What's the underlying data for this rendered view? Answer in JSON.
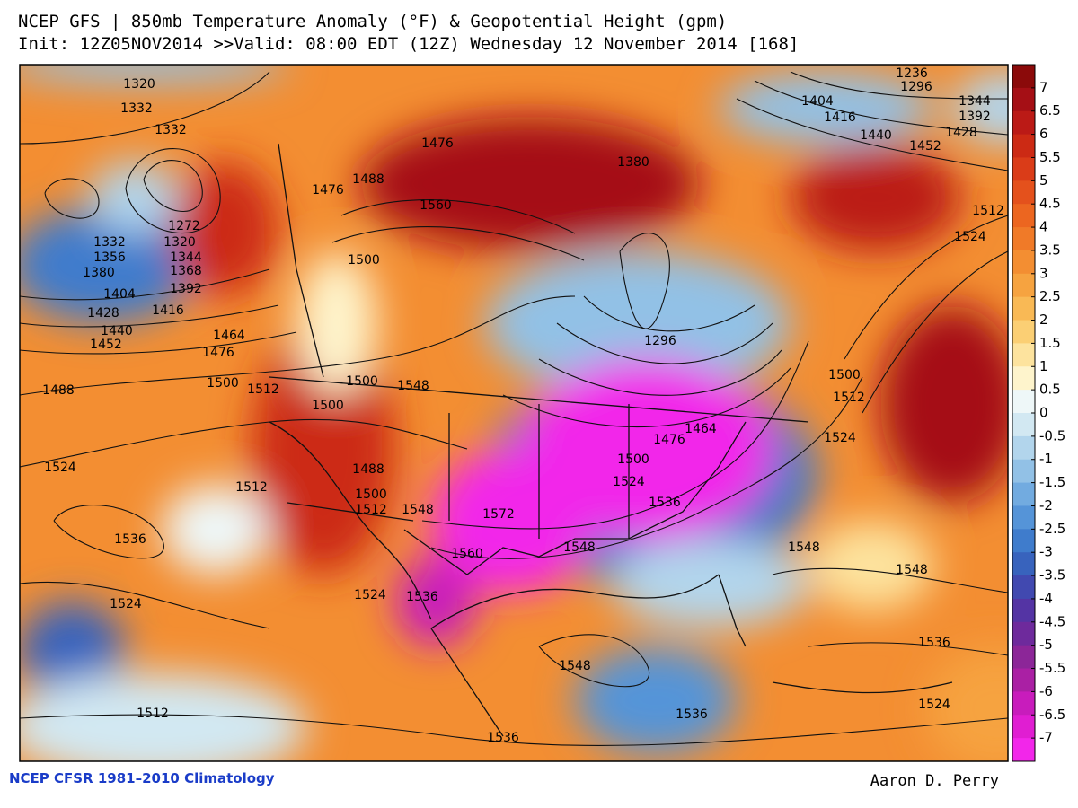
{
  "header": {
    "title": "NCEP GFS | 850mb Temperature Anomaly (°F) & Geopotential Height (gpm)",
    "subtitle": "Init: 12Z05NOV2014 >>Valid: 08:00 EDT (12Z) Wednesday 12 November 2014 [168]"
  },
  "colorbar": {
    "ticks": [
      7,
      6.5,
      6,
      5.5,
      5,
      4.5,
      4,
      3.5,
      3,
      2.5,
      2,
      1.5,
      1,
      0.5,
      0,
      -0.5,
      -1,
      -1.5,
      -2,
      -2.5,
      -3,
      -3.5,
      -4,
      -4.5,
      -5,
      -5.5,
      -6,
      -6.5,
      -7
    ],
    "colors": [
      "#8b0a0a",
      "#a50f15",
      "#bb1a16",
      "#cc2a14",
      "#da3c18",
      "#e4511c",
      "#ec6620",
      "#f07a28",
      "#f38e32",
      "#f6a340",
      "#f9b955",
      "#fbcf74",
      "#fde39e",
      "#fef4cc",
      "#eef7f8",
      "#d2e8f2",
      "#b2d5ec",
      "#92c1e6",
      "#72abe0",
      "#5594d8",
      "#3f7ccc",
      "#3863bd",
      "#4149b0",
      "#5434a4",
      "#6e2a9c",
      "#8c2698",
      "#aa20a4",
      "#c81cbc",
      "#e01ed2",
      "#f226ea"
    ]
  },
  "contour_labels": [
    1320,
    1332,
    1332,
    1272,
    1332,
    1320,
    1356,
    1344,
    1380,
    1368,
    1404,
    1392,
    1428,
    1416,
    1440,
    1452,
    1464,
    1476,
    1488,
    1500,
    1512,
    1500,
    1500,
    1548,
    1524,
    1512,
    1488,
    1500,
    1512,
    1548,
    1572,
    1536,
    1560,
    1548,
    1524,
    1524,
    1536,
    1548,
    1512,
    1536,
    1536,
    1524,
    1536,
    1548,
    1548,
    1524,
    1512,
    1500,
    1512,
    1524,
    1536,
    1524,
    1500,
    1476,
    1464,
    1296,
    1404,
    1416,
    1440,
    1452,
    1428,
    1392,
    1344,
    1296,
    1236,
    1380,
    1560,
    1476,
    1488,
    1476,
    1500
  ],
  "footer": {
    "left": "NCEP CFSR 1981–2010 Climatology",
    "right": "Aaron D. Perry"
  }
}
